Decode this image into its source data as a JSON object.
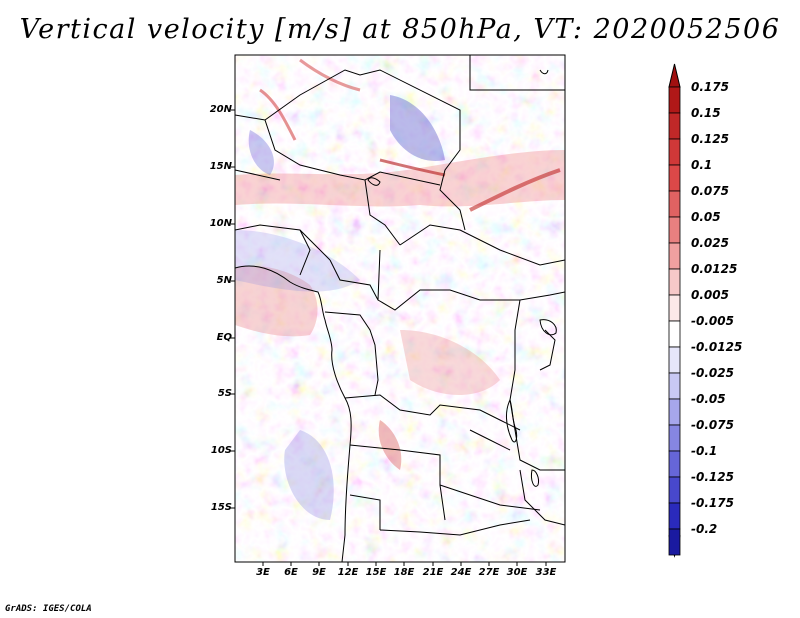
{
  "title": "Vertical velocity [m/s] at 850hPa, VT: 2020052506",
  "map": {
    "variable": "Vertical velocity",
    "units": "m/s",
    "level": "850hPa",
    "valid_time": "2020052506",
    "lat_labels": [
      "20N",
      "15N",
      "10N",
      "5N",
      "EQ",
      "5S",
      "10S",
      "15S"
    ],
    "lon_labels": [
      "3E",
      "6E",
      "9E",
      "12E",
      "15E",
      "18E",
      "21E",
      "24E",
      "27E",
      "30E",
      "33E"
    ]
  },
  "colorbar": {
    "levels": [
      "0.175",
      "0.15",
      "0.125",
      "0.1",
      "0.075",
      "0.05",
      "0.025",
      "0.0125",
      "0.005",
      "-0.005",
      "-0.0125",
      "-0.025",
      "-0.05",
      "-0.075",
      "-0.1",
      "-0.125",
      "-0.175",
      "-0.2"
    ],
    "colors": [
      "#b01818",
      "#c02828",
      "#d03838",
      "#dc4848",
      "#e06262",
      "#e88080",
      "#f0a0a0",
      "#f7c8c8",
      "#fce8e8",
      "#ffffff",
      "#e6e6fa",
      "#c8c8f4",
      "#a6a6ec",
      "#8686e2",
      "#6666d8",
      "#4848cc",
      "#2a2abc",
      "#1a1aa0"
    ],
    "top_arrow_color": "#a01010",
    "bottom_arrow_color": "#10108c"
  },
  "credit": "GrADS: IGES/COLA"
}
